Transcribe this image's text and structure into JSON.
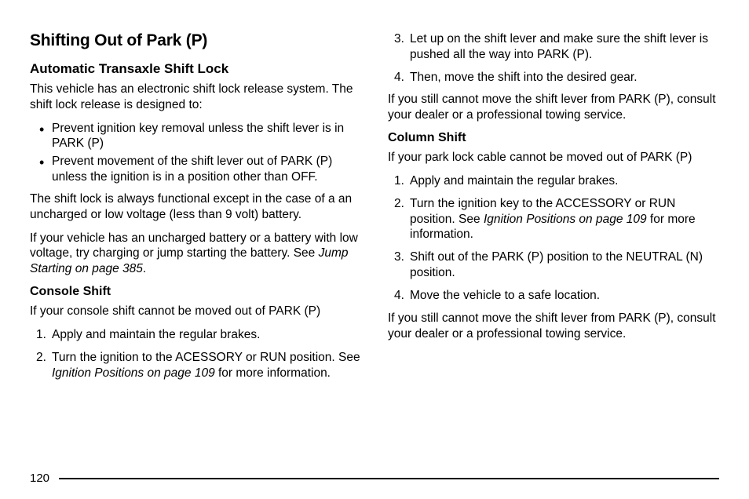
{
  "page_number": "120",
  "left": {
    "h2": "Shifting Out of Park (P)",
    "h3": "Automatic Transaxle Shift Lock",
    "p1": "This vehicle has an electronic shift lock release system. The shift lock release is designed to:",
    "bullets": [
      "Prevent ignition key removal unless the shift lever is in PARK (P)",
      "Prevent movement of the shift lever out of PARK (P) unless the ignition is in a position other than OFF."
    ],
    "p2": "The shift lock is always functional except in the case of a an uncharged or low voltage (less than 9 volt) battery.",
    "p3_a": "If your vehicle has an uncharged battery or a battery with low voltage, try charging or jump starting the battery. See ",
    "p3_i": "Jump Starting on page 385",
    "p3_b": ".",
    "h4": "Console Shift",
    "p4": "If your console shift cannot be moved out of PARK (P)",
    "ol1_1": "Apply and maintain the regular brakes.",
    "ol1_2_a": "Turn the ignition to the ACESSORY or RUN position. See ",
    "ol1_2_i": "Ignition Positions on page 109",
    "ol1_2_b": " for more information."
  },
  "right": {
    "ol2_3": "Let up on the shift lever and make sure the shift lever is pushed all the way into PARK (P).",
    "ol2_4": "Then, move the shift into the desired gear.",
    "p5": "If you still cannot move the shift lever from PARK (P), consult your dealer or a professional towing service.",
    "h4": "Column Shift",
    "p6": "If your park lock cable cannot be moved out of PARK (P)",
    "ol3_1": "Apply and maintain the regular brakes.",
    "ol3_2_a": "Turn the ignition key to the ACCESSORY or RUN position. See ",
    "ol3_2_i": "Ignition Positions on page 109",
    "ol3_2_b": " for more information.",
    "ol3_3": "Shift out of the PARK (P) position to the NEUTRAL (N) position.",
    "ol3_4": "Move the vehicle to a safe location.",
    "p7": "If you still cannot move the shift lever from PARK (P), consult your dealer or a professional towing service."
  }
}
